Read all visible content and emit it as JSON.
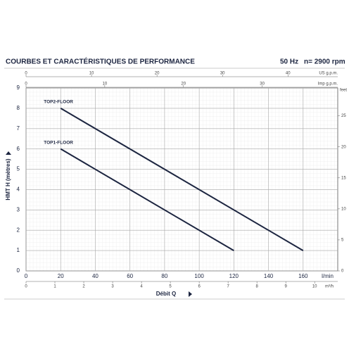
{
  "chart_data": {
    "type": "line",
    "title": "COURBES ET CARACTÉRISTIQUES DE PERFORMANCE",
    "frequency": "50 Hz",
    "speed": "n= 2900 rpm",
    "xlabel": "Débit Q",
    "xunit": "l/min",
    "ylabel": "HMT H (mètres)",
    "xlim": [
      0,
      180
    ],
    "xticks": [
      0,
      20,
      40,
      60,
      80,
      100,
      120,
      140,
      160
    ],
    "ylim": [
      0,
      9
    ],
    "yticks": [
      0,
      1,
      2,
      3,
      4,
      5,
      6,
      7,
      8,
      9
    ],
    "grid": true,
    "series": [
      {
        "name": "TOP2-FLOOR",
        "color": "#1c2540",
        "x": [
          20,
          160
        ],
        "values": [
          8,
          1
        ]
      },
      {
        "name": "TOP1-FLOOR",
        "color": "#1c2540",
        "x": [
          20,
          120
        ],
        "values": [
          6,
          1
        ]
      }
    ],
    "secondary_axes": [
      {
        "position": "top",
        "unit": "US g.p.m.",
        "lim": [
          0,
          47.6
        ],
        "ticks": [
          0,
          10,
          20,
          30,
          40
        ]
      },
      {
        "position": "top",
        "unit": "Imp g.p.m.",
        "lim": [
          0,
          39.6
        ],
        "ticks": [
          0,
          10,
          20,
          30
        ]
      },
      {
        "position": "bottom",
        "unit": "m³/h",
        "lim": [
          0,
          10.8
        ],
        "ticks": [
          0,
          1,
          2,
          3,
          4,
          5,
          6,
          7,
          8,
          9,
          10
        ]
      },
      {
        "position": "right",
        "unit": "feet",
        "lim": [
          0,
          29.5
        ],
        "ticks": [
          0,
          5,
          10,
          15,
          20,
          25
        ]
      }
    ]
  }
}
